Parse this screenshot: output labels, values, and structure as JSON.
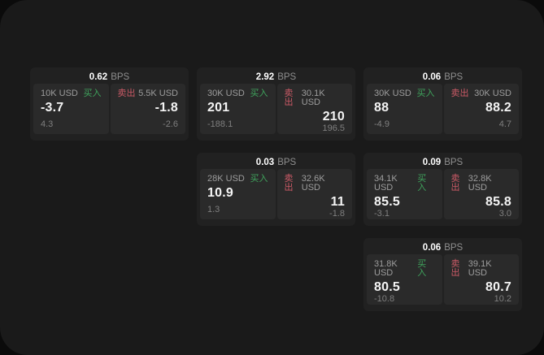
{
  "labels": {
    "bps": "BPS",
    "buy": "买入",
    "sell": "卖出"
  },
  "colors": {
    "buy_green": "#3fa35c",
    "sell_red": "#cb5a66",
    "surface_bg": "#1a1a1a",
    "card_bg": "#212121",
    "panel_bg": "#2a2a2a"
  },
  "cards": [
    {
      "row": 1,
      "col": 1,
      "bps": "0.62",
      "buy": {
        "amount": "10K USD",
        "value": "-3.7",
        "delta": "4.3"
      },
      "sell": {
        "amount": "5.5K USD",
        "value": "-1.8",
        "delta": "-2.6"
      }
    },
    {
      "row": 1,
      "col": 2,
      "bps": "2.92",
      "buy": {
        "amount": "30K USD",
        "value": "201",
        "delta": "-188.1"
      },
      "sell": {
        "amount": "30.1K USD",
        "value": "210",
        "delta": "196.5"
      }
    },
    {
      "row": 1,
      "col": 3,
      "bps": "0.06",
      "buy": {
        "amount": "30K USD",
        "value": "88",
        "delta": "-4.9"
      },
      "sell": {
        "amount": "30K USD",
        "value": "88.2",
        "delta": "4.7"
      }
    },
    {
      "row": 2,
      "col": 2,
      "bps": "0.03",
      "buy": {
        "amount": "28K USD",
        "value": "10.9",
        "delta": "1.3"
      },
      "sell": {
        "amount": "32.6K USD",
        "value": "11",
        "delta": "-1.8"
      }
    },
    {
      "row": 2,
      "col": 3,
      "bps": "0.09",
      "buy": {
        "amount": "34.1K USD",
        "value": "85.5",
        "delta": "-3.1"
      },
      "sell": {
        "amount": "32.8K USD",
        "value": "85.8",
        "delta": "3.0"
      }
    },
    {
      "row": 3,
      "col": 3,
      "bps": "0.06",
      "buy": {
        "amount": "31.8K USD",
        "value": "80.5",
        "delta": "-10.8"
      },
      "sell": {
        "amount": "39.1K USD",
        "value": "80.7",
        "delta": "10.2"
      }
    }
  ]
}
